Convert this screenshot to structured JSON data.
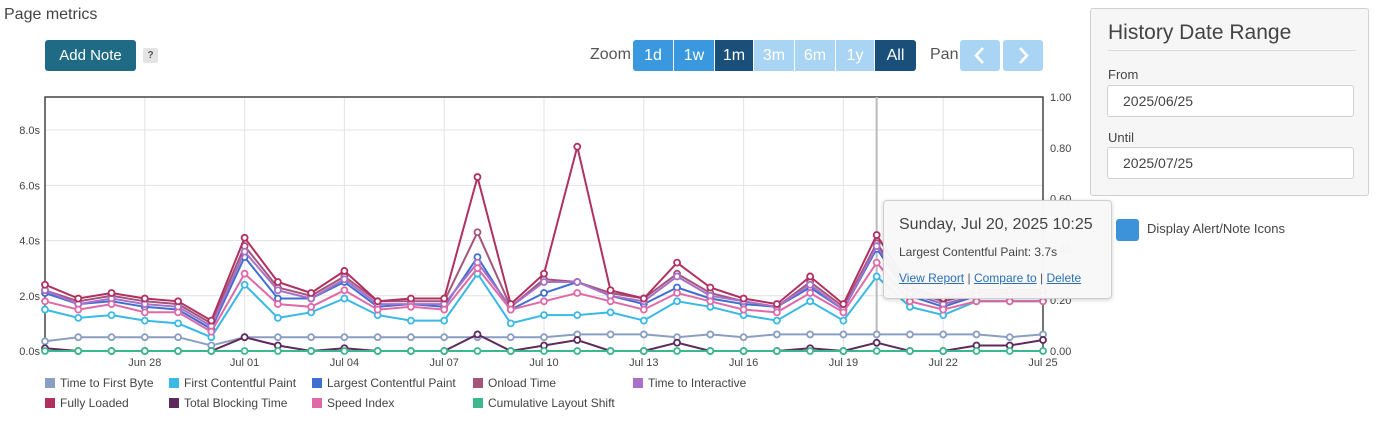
{
  "page_title": "Page metrics",
  "add_note_label": "Add Note",
  "help_label": "?",
  "zoom": {
    "label": "Zoom",
    "options": [
      {
        "label": "1d",
        "state": "enabled"
      },
      {
        "label": "1w",
        "state": "enabled"
      },
      {
        "label": "1m",
        "state": "selected"
      },
      {
        "label": "3m",
        "state": "disabled"
      },
      {
        "label": "6m",
        "state": "disabled"
      },
      {
        "label": "1y",
        "state": "disabled"
      },
      {
        "label": "All",
        "state": "selected"
      }
    ]
  },
  "pan": {
    "label": "Pan",
    "prev_icon": "chevron-left-icon",
    "next_icon": "chevron-right-icon"
  },
  "history": {
    "title": "History Date Range",
    "from_label": "From",
    "from_value": "2025/06/25",
    "until_label": "Until",
    "until_value": "2025/07/25"
  },
  "display_alert_label": "Display Alert/Note Icons",
  "tooltip": {
    "title": "Sunday, Jul 20, 2025 10:25",
    "line": "Largest Contentful Paint: 3.7s",
    "links": [
      "View Report",
      "Compare to",
      "Delete"
    ]
  },
  "colors": {
    "accent": "#1f6b86",
    "zoom_enabled": "#3a99de",
    "zoom_selected": "#1a4f7a",
    "zoom_disabled": "#a9d4f3"
  },
  "chart_data": {
    "type": "line",
    "title": "",
    "x_start": "2025-06-25",
    "x_end": "2025-07-25",
    "x_tick_labels": [
      "Jun 28",
      "Jul 01",
      "Jul 04",
      "Jul 07",
      "Jul 10",
      "Jul 13",
      "Jul 16",
      "Jul 19",
      "Jul 22",
      "Jul 25"
    ],
    "y_left": {
      "ticks": [
        "0.0s",
        "2.0s",
        "4.0s",
        "6.0s",
        "8.0s"
      ],
      "range": [
        0,
        9.2
      ],
      "unit": "s"
    },
    "y_right": {
      "ticks": [
        "0.00",
        "0.20",
        "0.40",
        "0.60",
        "0.80",
        "1.00"
      ],
      "range": [
        0,
        1.0
      ]
    },
    "grid": true,
    "legend_position": "bottom",
    "highlight_date": "2025-07-20",
    "series": [
      {
        "name": "Time to First Byte",
        "color": "#8a9ec4",
        "axis": "left",
        "values": [
          0.35,
          0.5,
          0.5,
          0.5,
          0.5,
          0.2,
          0.5,
          0.5,
          0.5,
          0.5,
          0.5,
          0.5,
          0.5,
          0.5,
          0.5,
          0.5,
          0.6,
          0.6,
          0.6,
          0.5,
          0.6,
          0.5,
          0.6,
          0.6,
          0.6,
          0.6,
          0.6,
          0.6,
          0.6,
          0.5,
          0.6
        ]
      },
      {
        "name": "First Contentful Paint",
        "color": "#3ab8e6",
        "axis": "left",
        "values": [
          1.5,
          1.2,
          1.3,
          1.1,
          1.0,
          0.5,
          2.4,
          1.2,
          1.4,
          1.9,
          1.3,
          1.1,
          1.1,
          2.8,
          1.0,
          1.3,
          1.3,
          1.4,
          1.1,
          1.8,
          1.6,
          1.3,
          1.1,
          1.8,
          1.1,
          2.7,
          1.6,
          1.3,
          1.8,
          1.8,
          1.8
        ]
      },
      {
        "name": "Largest Contentful Paint",
        "color": "#3f6fd0",
        "axis": "left",
        "values": [
          2.1,
          1.7,
          1.8,
          1.6,
          1.5,
          0.8,
          3.4,
          1.9,
          1.9,
          2.5,
          1.6,
          1.7,
          1.6,
          3.4,
          1.5,
          2.1,
          2.5,
          2.0,
          1.7,
          2.3,
          1.9,
          1.7,
          1.6,
          2.3,
          1.5,
          3.7,
          2.0,
          1.6,
          2.0,
          2.0,
          2.0
        ]
      },
      {
        "name": "Onload Time",
        "color": "#a4567a",
        "axis": "left",
        "values": [
          2.2,
          1.8,
          2.0,
          1.8,
          1.7,
          1.0,
          3.8,
          2.3,
          2.0,
          2.7,
          1.8,
          1.8,
          1.8,
          4.3,
          1.6,
          2.6,
          2.5,
          2.1,
          1.9,
          2.8,
          2.1,
          1.8,
          1.6,
          2.5,
          1.6,
          3.9,
          2.2,
          1.8,
          2.1,
          2.1,
          2.1
        ]
      },
      {
        "name": "Time to Interactive",
        "color": "#a870c8",
        "axis": "left",
        "values": [
          2.2,
          1.7,
          1.9,
          1.7,
          1.6,
          0.9,
          3.6,
          2.2,
          1.9,
          2.6,
          1.7,
          1.7,
          1.7,
          3.2,
          1.6,
          2.5,
          2.5,
          2.0,
          1.8,
          2.7,
          2.0,
          1.8,
          1.6,
          2.4,
          1.5,
          3.8,
          2.1,
          1.7,
          2.0,
          2.0,
          2.0
        ]
      },
      {
        "name": "Fully Loaded",
        "color": "#b03060",
        "axis": "left",
        "values": [
          2.4,
          1.9,
          2.1,
          1.9,
          1.8,
          1.1,
          4.1,
          2.5,
          2.1,
          2.9,
          1.8,
          1.9,
          1.9,
          6.3,
          1.7,
          2.8,
          7.4,
          2.2,
          1.9,
          3.2,
          2.3,
          1.9,
          1.7,
          2.7,
          1.7,
          4.2,
          2.3,
          1.9,
          2.2,
          2.2,
          2.2
        ]
      },
      {
        "name": "Total Blocking Time",
        "color": "#5c2a5c",
        "axis": "left",
        "values": [
          0.1,
          0.0,
          0.0,
          0.0,
          0.0,
          0.0,
          0.5,
          0.2,
          0.0,
          0.1,
          0.0,
          0.0,
          0.0,
          0.6,
          0.0,
          0.2,
          0.4,
          0.0,
          0.0,
          0.3,
          0.0,
          0.0,
          0.0,
          0.1,
          0.0,
          0.3,
          0.0,
          0.0,
          0.2,
          0.2,
          0.4
        ]
      },
      {
        "name": "Speed Index",
        "color": "#e06aa8",
        "axis": "left",
        "values": [
          1.8,
          1.5,
          1.7,
          1.4,
          1.4,
          0.7,
          2.8,
          1.7,
          1.6,
          2.2,
          1.5,
          1.6,
          1.5,
          3.0,
          1.5,
          1.8,
          2.1,
          1.8,
          1.5,
          2.1,
          1.8,
          1.5,
          1.4,
          2.1,
          1.4,
          3.2,
          1.8,
          1.5,
          1.8,
          1.8,
          1.8
        ]
      },
      {
        "name": "Cumulative Layout Shift",
        "color": "#3cb88e",
        "axis": "right",
        "values": [
          0.0,
          0.0,
          0.0,
          0.0,
          0.0,
          0.0,
          0.0,
          0.0,
          0.0,
          0.0,
          0.0,
          0.0,
          0.0,
          0.0,
          0.0,
          0.0,
          0.0,
          0.0,
          0.0,
          0.0,
          0.0,
          0.0,
          0.0,
          0.0,
          0.0,
          0.0,
          0.0,
          0.0,
          0.0,
          0.0,
          0.0
        ]
      }
    ]
  }
}
